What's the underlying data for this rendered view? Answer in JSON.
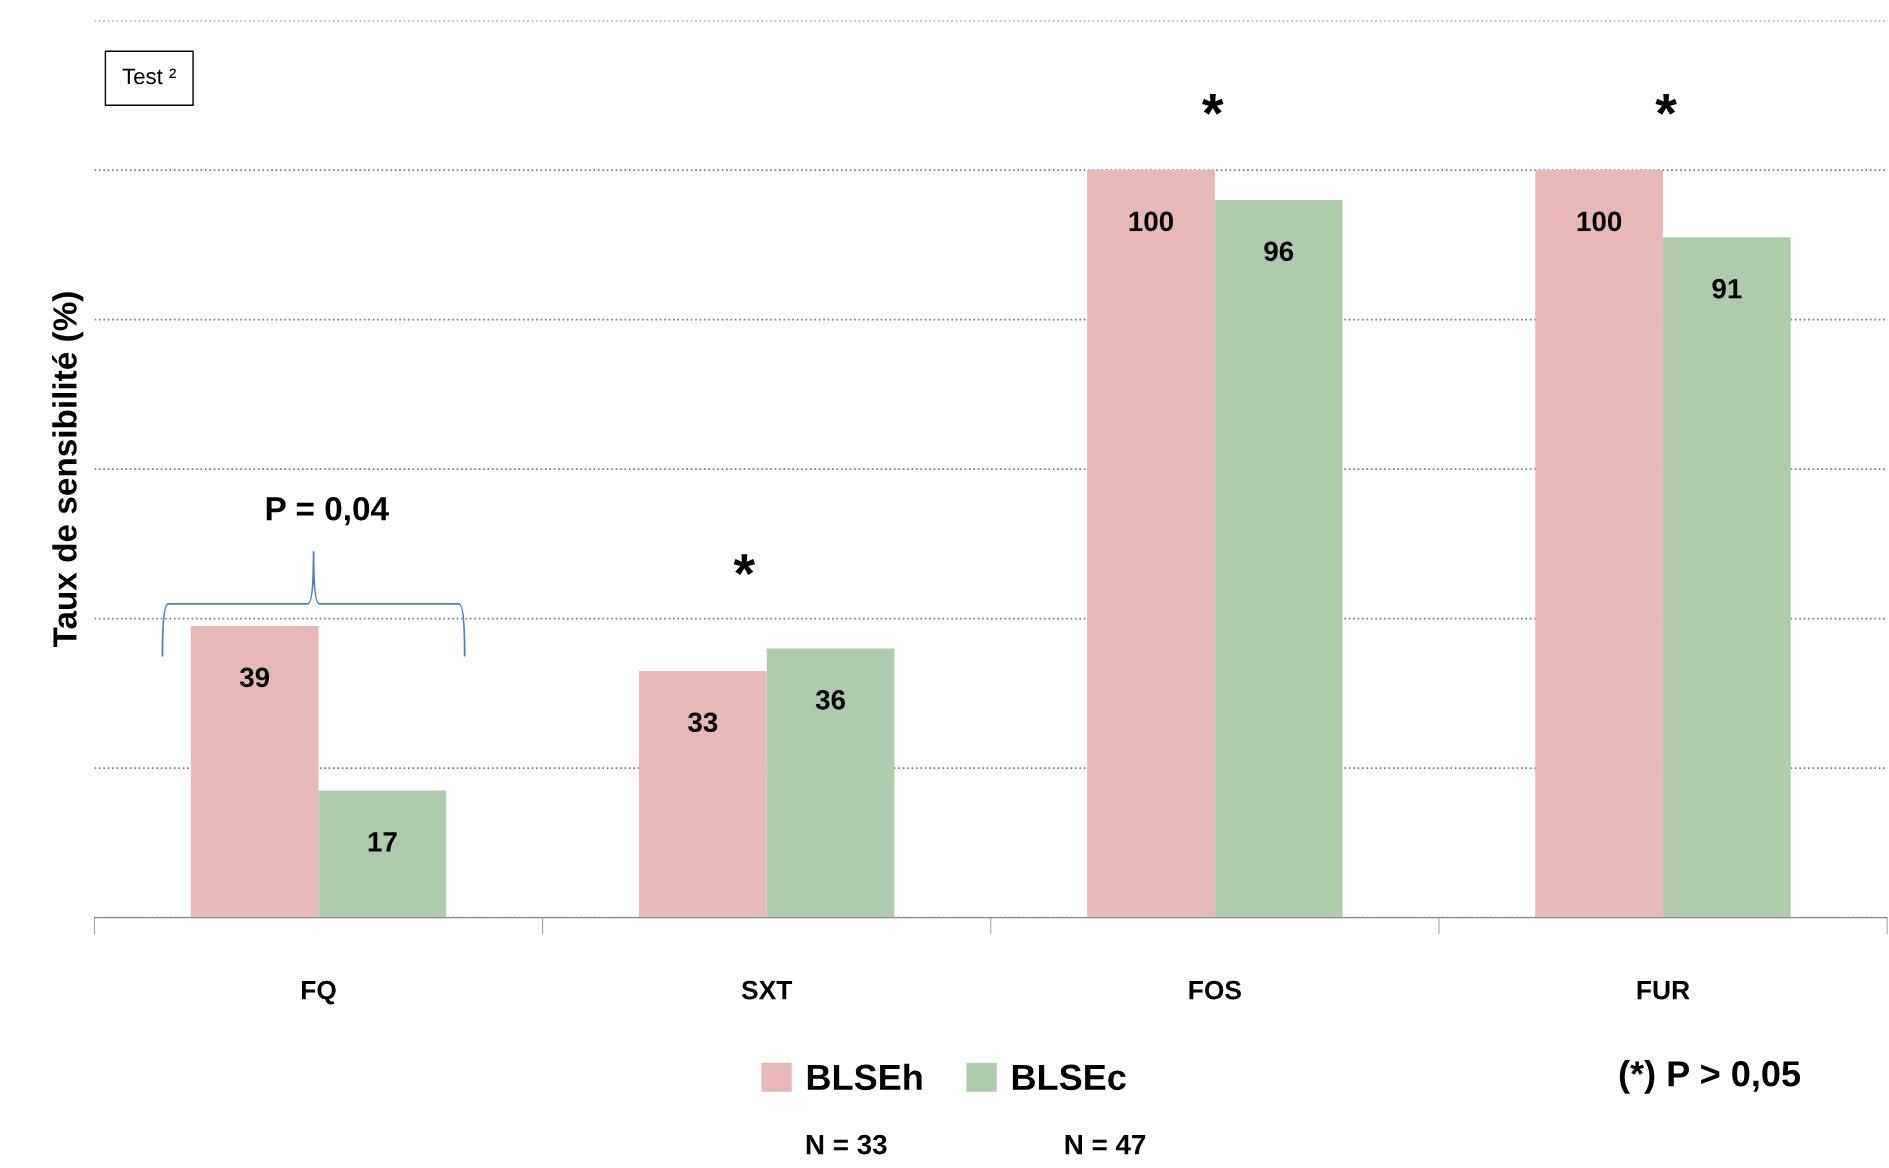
{
  "chart_data": {
    "type": "bar",
    "ylabel": "Taux de sensibilité (%)",
    "categories": [
      "FQ",
      "SXT",
      "FOS",
      "FUR"
    ],
    "series": [
      {
        "name": "BLSEh",
        "color": "#e6b8b7",
        "values": [
          39,
          33,
          100,
          100
        ]
      },
      {
        "name": "BLSEc",
        "color": "#aecbad",
        "values": [
          17,
          36,
          96,
          91
        ]
      }
    ],
    "ylim": [
      0,
      120
    ],
    "yticks": [
      {
        "value": 0,
        "label": null
      },
      {
        "value": 20,
        "label": null
      },
      {
        "value": 40,
        "label": null
      },
      {
        "value": 60,
        "label": null
      },
      {
        "value": 80,
        "label": null
      },
      {
        "value": 100,
        "label": null
      },
      {
        "value": 120,
        "label": null
      }
    ],
    "grid": "y",
    "tick_labels": "x",
    "data_labels": true,
    "legend": "bottom",
    "annotations": [
      "Test ²",
      "P = 0,04",
      "*",
      "*",
      "*",
      "(*) P > 0,05",
      "N = 33",
      "N = 47"
    ]
  }
}
